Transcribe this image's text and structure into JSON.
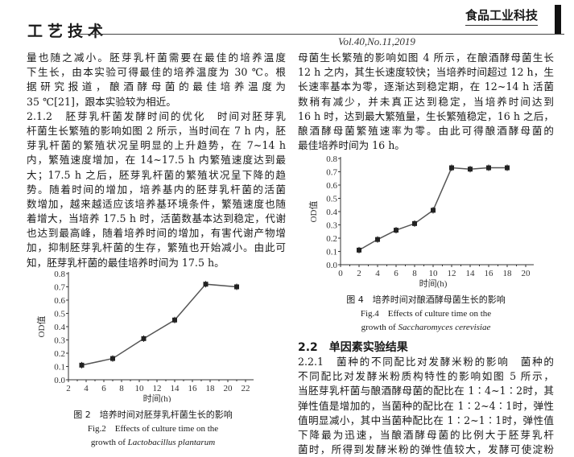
{
  "header": {
    "section": "工艺技术",
    "journal": "食品工业科技",
    "volume": "Vol.40,No.11,2019"
  },
  "left_column": {
    "lines": [
      "量也随之减小。胚芽乳杆菌需要在最佳的培养温度",
      "下生长，由本实验可得最佳的培养温度为 30 ℃。根",
      "据研究报道，酿酒酵母菌的最佳培养温度为",
      "35 ℃[21]，跟本实验较为相近。",
      "2.1.2　胚芽乳杆菌发酵时间的优化　时间对胚芽乳",
      "杆菌生长繁殖的影响如图 2 所示，当时间在 7 h 内，胚",
      "芽乳杆菌的繁殖状况呈明显的上升趋势，在 7~14 h",
      "内，繁殖速度增加，在 14~17.5 h 内繁殖速度达到最",
      "大；17.5 h 之后，胚芽乳杆菌的繁殖状况呈下降的趋",
      "势。随着时间的增加，培养基内的胚芽乳杆菌的活菌",
      "数增加，越来越适应该培养基环境条件，繁殖速度也随",
      "着增大，当培养 17.5 h 时，活菌数基本达到稳定，代谢",
      "也达到最高峰，随着培养时间的增加，有害代谢产物增",
      "加，抑制胚芽乳杆菌的生存，繁殖也开始减小。由此可",
      "知，胚芽乳杆菌的最佳培养时间为 17.5 h。"
    ]
  },
  "right_column": {
    "lines": [
      "母菌生长繁殖的影响如图 4 所示，在酿酒酵母菌生长",
      "12 h 之内，其生长速度较快；当培养时间超过 12 h，生",
      "长速率基本为零，逐渐达到稳定期，在 12~14 h 活菌",
      "数稍有减少，并未真正达到稳定，当培养时间达到",
      "16 h 时，达到最大繁殖量，生长繁殖稳定，16 h 之后，",
      "酿酒酵母菌繁殖速率为零。由此可得酿酒酵母菌的",
      "最佳培养时间为 16 h。"
    ],
    "section_heading": "2.2　单因素实验结果",
    "lines2": [
      "2.2.1　菌种的不同配比对发酵米粉的影响　菌种的",
      "不同配比对发酵米粉质构特性的影响如图 5 所示，",
      "当胚芽乳杆菌与酿酒酵母菌的配比在 1∶4~1∶2时，其",
      "弹性值是增加的，当菌种的配比在 1∶2~4∶1时，弹性",
      "值明显减小，其中当菌种配比在 1∶2~1∶1时，弹性值",
      "下降最为迅速，当酿酒酵母菌的比例大于胚芽乳杆",
      "菌时，所得到发酵米粉的弹性值较大，发酵可使淀粉"
    ]
  },
  "figure2": {
    "caption_cn": "图 2　培养时间对胚芽乳杆菌生长的影响",
    "caption_en1": "Fig.2　Effects of culture time on the",
    "caption_en2_prefix": "growth of ",
    "caption_en2_species": "Lactobacillus plantarum"
  },
  "figure4": {
    "caption_cn": "图 4　培养时间对酿酒酵母菌生长的影响",
    "caption_en1": "Fig.4　Effects of culture time on the",
    "caption_en2_prefix": "growth of ",
    "caption_en2_species": "Saccharomyces cerevisiae"
  },
  "chart_data": [
    {
      "id": "fig2",
      "type": "line",
      "xlabel": "时间(h)",
      "ylabel": "OD值",
      "xlim": [
        2,
        22
      ],
      "ylim": [
        0,
        0.8
      ],
      "xticks": [
        2,
        4,
        6,
        8,
        10,
        12,
        14,
        16,
        18,
        20,
        22
      ],
      "yticks": [
        0.0,
        0.1,
        0.2,
        0.3,
        0.4,
        0.5,
        0.6,
        0.7,
        0.8
      ],
      "x": [
        3.5,
        7,
        10.5,
        14,
        17.5,
        21
      ],
      "y": [
        0.11,
        0.16,
        0.31,
        0.45,
        0.72,
        0.7
      ],
      "grid": false,
      "color": "#555555"
    },
    {
      "id": "fig4",
      "type": "line",
      "xlabel": "时间(h)",
      "ylabel": "OD值",
      "xlim": [
        0,
        20
      ],
      "ylim": [
        0,
        0.8
      ],
      "xticks": [
        0,
        2,
        4,
        6,
        8,
        10,
        12,
        14,
        16,
        18,
        20
      ],
      "yticks": [
        0.0,
        0.1,
        0.2,
        0.3,
        0.4,
        0.5,
        0.6,
        0.7,
        0.8
      ],
      "x": [
        2,
        4,
        6,
        8,
        10,
        12,
        14,
        16,
        18
      ],
      "y": [
        0.11,
        0.19,
        0.26,
        0.31,
        0.41,
        0.73,
        0.72,
        0.73,
        0.73
      ],
      "grid": false,
      "color": "#555555"
    }
  ]
}
